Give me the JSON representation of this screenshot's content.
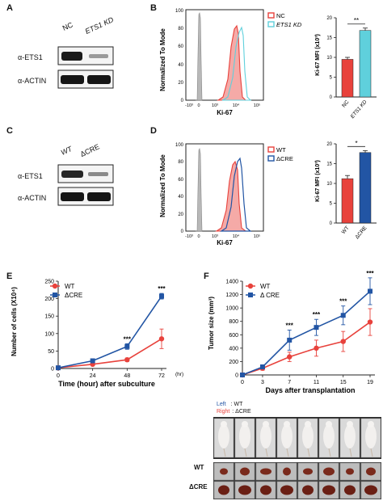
{
  "panels": {
    "A": {
      "label": "A",
      "lanes": [
        "NC",
        "ETS1 KD"
      ],
      "bands": [
        "α-ETS1",
        "α-ACTIN"
      ]
    },
    "B": {
      "label": "B",
      "ylabel": "Normalized To Mode",
      "xlabel": "Ki-67",
      "legend": [
        "NC",
        "ETS1 KD"
      ],
      "yticks": [
        "0",
        "20",
        "40",
        "60",
        "80",
        "100"
      ],
      "xticks": [
        "-10³",
        "0",
        "10³",
        "10⁴",
        "10⁵"
      ],
      "bar": {
        "ylabel": "Ki-67 MFI (x10³)",
        "categories": [
          "NC",
          "ETS1 KD"
        ],
        "values": [
          9.5,
          16.8
        ],
        "errors": [
          0.5,
          0.6
        ],
        "yticks": [
          "0",
          "5",
          "10",
          "15",
          "20"
        ],
        "ylim": [
          0,
          20
        ],
        "sig": "**",
        "colors": [
          "#e8423c",
          "#5fd0dc"
        ]
      }
    },
    "C": {
      "label": "C",
      "lanes": [
        "WT",
        "ΔCRE"
      ],
      "bands": [
        "α-ETS1",
        "α-ACTIN"
      ]
    },
    "D": {
      "label": "D",
      "ylabel": "Normalized To Mode",
      "xlabel": "Ki-67",
      "legend": [
        "WT",
        "ΔCRE"
      ],
      "yticks": [
        "0",
        "20",
        "40",
        "60",
        "80",
        "100"
      ],
      "xticks": [
        "-10³",
        "0",
        "10³",
        "10⁴",
        "10⁵"
      ],
      "bar": {
        "ylabel": "Ki-67 MFI (x10³)",
        "categories": [
          "WT",
          "ΔCRE"
        ],
        "values": [
          11.2,
          17.8
        ],
        "errors": [
          0.8,
          0.5
        ],
        "yticks": [
          "0",
          "5",
          "10",
          "15",
          "20"
        ],
        "ylim": [
          0,
          20
        ],
        "sig": "*",
        "colors": [
          "#e8423c",
          "#2255a4"
        ]
      }
    },
    "E": {
      "label": "E",
      "legend": [
        "WT",
        "ΔCRE"
      ],
      "unit": "(hr)",
      "annotations": [
        "***",
        "***"
      ]
    },
    "F": {
      "label": "F",
      "legend": [
        "WT",
        "Δ CRE"
      ],
      "annotations": [
        "***",
        "***",
        "***",
        "***"
      ],
      "photo_caption": {
        "left_word": "Left",
        "left_val": ": WT",
        "right_word": "Right",
        "right_val": ": ΔCRE"
      },
      "row_labels": [
        "WT",
        "ΔCRE"
      ]
    }
  },
  "chart_data": [
    {
      "type": "line",
      "panel": "E",
      "xlabel": "Time (hour) after subculture",
      "ylabel": "Number of cells (X10⁴)",
      "x": [
        0,
        24,
        48,
        72
      ],
      "xticks": [
        "0",
        "24",
        "48",
        "72"
      ],
      "yticks": [
        "0",
        "50",
        "100",
        "150",
        "200",
        "250"
      ],
      "xlim": [
        0,
        72
      ],
      "ylim": [
        0,
        250
      ],
      "series": [
        {
          "name": "WT",
          "values": [
            2,
            12,
            25,
            85
          ],
          "errors": [
            1,
            3,
            5,
            28
          ],
          "color": "#e8423c"
        },
        {
          "name": "ΔCRE",
          "values": [
            2,
            22,
            63,
            207
          ],
          "errors": [
            1,
            3,
            8,
            8
          ],
          "color": "#2255a4"
        }
      ]
    },
    {
      "type": "line",
      "panel": "F",
      "xlabel": "Days after transplantation",
      "ylabel": "Tumor size (mm³)",
      "x": [
        0,
        3,
        7,
        11,
        15,
        19
      ],
      "xticks": [
        "0",
        "3",
        "7",
        "11",
        "15",
        "19"
      ],
      "yticks": [
        "0",
        "200",
        "400",
        "600",
        "800",
        "1000",
        "1200",
        "1400"
      ],
      "xlim": [
        0,
        19
      ],
      "ylim": [
        0,
        1400
      ],
      "series": [
        {
          "name": "WT",
          "values": [
            0,
            100,
            270,
            400,
            500,
            790
          ],
          "errors": [
            0,
            30,
            70,
            120,
            150,
            200
          ],
          "color": "#e8423c"
        },
        {
          "name": "Δ CRE",
          "values": [
            0,
            120,
            520,
            710,
            890,
            1250
          ],
          "errors": [
            0,
            30,
            150,
            120,
            140,
            200
          ],
          "color": "#2255a4"
        }
      ]
    }
  ]
}
